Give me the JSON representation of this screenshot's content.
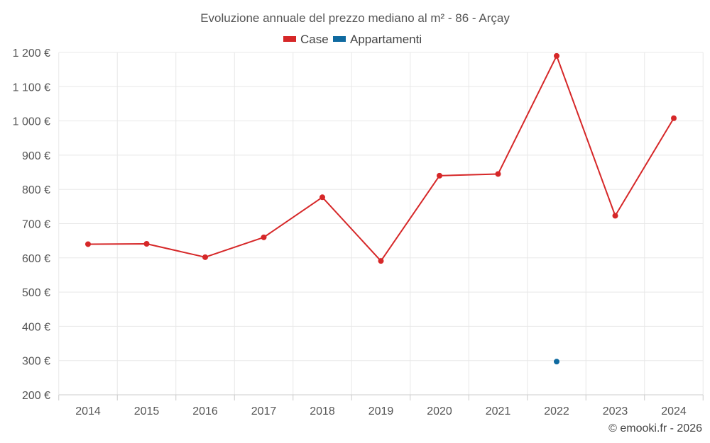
{
  "chart_data": {
    "type": "line",
    "title": "Evoluzione annuale del prezzo mediano al m² - 86 - Arçay",
    "categories": [
      "2014",
      "2015",
      "2016",
      "2017",
      "2018",
      "2019",
      "2020",
      "2021",
      "2022",
      "2023",
      "2024"
    ],
    "ylim": [
      200,
      1200
    ],
    "yticks": [
      200,
      300,
      400,
      500,
      600,
      700,
      800,
      900,
      1000,
      1100,
      1200
    ],
    "ytick_labels": [
      "200 €",
      "300 €",
      "400 €",
      "500 €",
      "600 €",
      "700 €",
      "800 €",
      "900 €",
      "1 000 €",
      "1 100 €",
      "1 200 €"
    ],
    "grid": true,
    "legend_position": "top-center",
    "series": [
      {
        "name": "Case",
        "color": "#d62728",
        "values": [
          640,
          641,
          602,
          660,
          777,
          591,
          840,
          845,
          1190,
          723,
          1008
        ]
      },
      {
        "name": "Appartamenti",
        "color": "#0f6aa0",
        "values": [
          null,
          null,
          null,
          null,
          null,
          null,
          null,
          null,
          297,
          null,
          null
        ]
      }
    ]
  },
  "credit": "© emooki.fr - 2026"
}
